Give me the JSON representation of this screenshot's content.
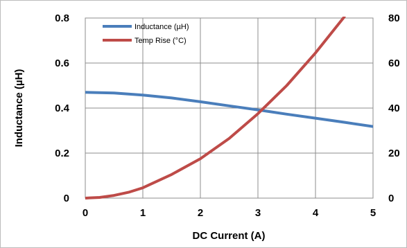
{
  "chart_data": {
    "type": "line",
    "xlabel": "DC Current (A)",
    "ylabel": "Inductance (µH)",
    "xlim": [
      0,
      5
    ],
    "x_ticks": [
      "0",
      "1",
      "2",
      "3",
      "4",
      "5"
    ],
    "ylim_left": [
      0,
      0.8
    ],
    "y_left_ticks": [
      "0",
      "0.2",
      "0.4",
      "0.6",
      "0.8"
    ],
    "ylim_right": [
      0,
      80
    ],
    "y_right_ticks": [
      "0",
      "20",
      "40",
      "60",
      "80"
    ],
    "grid": true,
    "legend_position": "top-left",
    "series": [
      {
        "name": "Inductance (µH)",
        "axis": "left",
        "color": "#4a7ebb",
        "x": [
          0,
          0.5,
          1,
          1.5,
          2,
          2.5,
          3,
          3.5,
          4,
          4.5,
          5
        ],
        "y": [
          0.47,
          0.467,
          0.458,
          0.445,
          0.428,
          0.41,
          0.392,
          0.373,
          0.355,
          0.337,
          0.318
        ]
      },
      {
        "name": "Temp Rise (°C)",
        "axis": "right",
        "color": "#be4b48",
        "x": [
          0,
          0.25,
          0.5,
          0.75,
          1,
          1.5,
          2,
          2.5,
          3,
          3.5,
          4,
          4.5
        ],
        "y": [
          0,
          0.3,
          1.2,
          2.6,
          4.6,
          10.5,
          17.5,
          26.5,
          37.5,
          50,
          64.5,
          80.5
        ]
      }
    ]
  }
}
